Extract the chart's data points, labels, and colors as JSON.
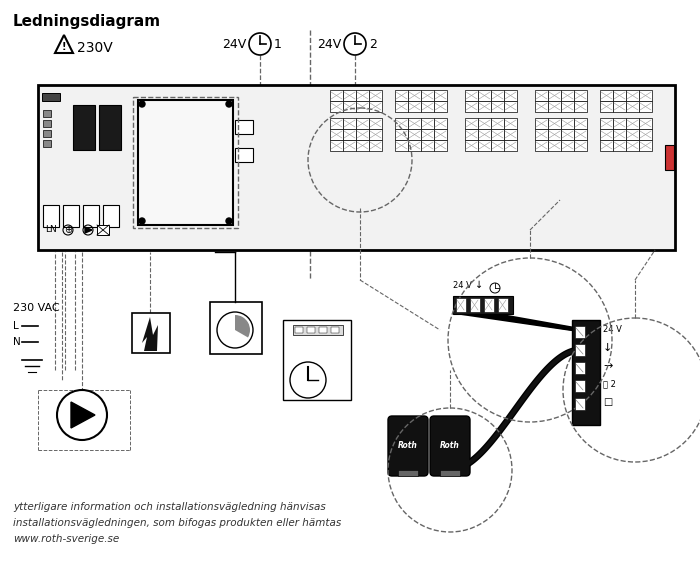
{
  "title": "Ledningsdiagram",
  "bg_color": "#ffffff",
  "line_color": "#000000",
  "dashed_color": "#666666",
  "footer_line1": "ytterligare information och installationsvägledning hänvisas",
  "footer_line2": "installationsvägledningen, som bifogas produkten eller hämtas",
  "footer_line3": "www.roth-sverige.se",
  "label_230v": "230V",
  "label_24v": "24V",
  "label_230vac": "230 VAC",
  "label_LN": "LN",
  "roth_label": "Roth",
  "label_24v_s": "24 V"
}
